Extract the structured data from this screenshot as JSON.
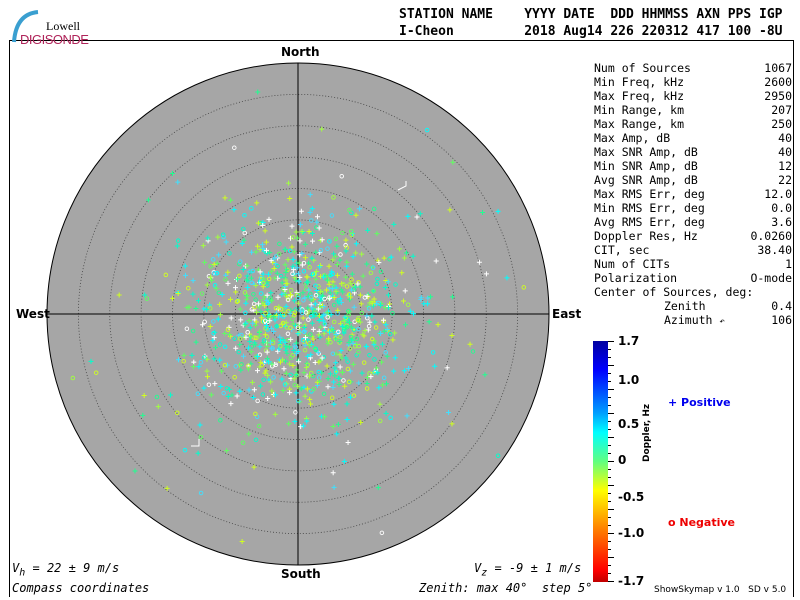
{
  "logo": {
    "line1": "Lowell",
    "line2": "DIGISONDE"
  },
  "header": {
    "labels": "STATION NAME    YYYY DATE  DDD HHMMSS AXN PPS IGP",
    "values": "I-Cheon         2018 Aug14 226 220312 417 100 -8U"
  },
  "directions": {
    "north": "North",
    "south": "South",
    "east": "East",
    "west": "West"
  },
  "stats": [
    {
      "label": "Num of Sources",
      "value": "1067"
    },
    {
      "label": "Min Freq, kHz",
      "value": "2600"
    },
    {
      "label": "Max Freq, kHz",
      "value": "2950"
    },
    {
      "label": "Min Range, km",
      "value": "207"
    },
    {
      "label": "Max Range, km",
      "value": "250"
    },
    {
      "label": "Max Amp, dB",
      "value": "40"
    },
    {
      "label": "Max SNR Amp, dB",
      "value": "40"
    },
    {
      "label": "Min SNR Amp, dB",
      "value": "12"
    },
    {
      "label": "Avg SNR Amp, dB",
      "value": "22"
    },
    {
      "label": "Max RMS Err, deg",
      "value": "12.0"
    },
    {
      "label": "Min RMS Err, deg",
      "value": "0.0"
    },
    {
      "label": "Avg RMS Err, deg",
      "value": "3.6"
    },
    {
      "label": "Doppler Res, Hz",
      "value": "0.0260"
    },
    {
      "label": "CIT, sec",
      "value": "38.40"
    },
    {
      "label": "Num of CITs",
      "value": "1"
    },
    {
      "label": "Polarization",
      "value": "O-mode"
    }
  ],
  "center": {
    "title": "Center of Sources, deg:",
    "zenith_label": "Zenith",
    "zenith": "0.4",
    "azimuth_label": "Azimuth",
    "azimuth": "106"
  },
  "colorbar": {
    "label": "Doppler, Hz",
    "ticks": [
      "1.7",
      "1.0",
      "0.5",
      "0",
      "-0.5",
      "-1.0",
      "-1.7"
    ],
    "range": [
      -1.7,
      1.7
    ]
  },
  "legend": {
    "positive": "Positive",
    "negative": "Negative",
    "positive_color": "#0000ee",
    "negative_color": "#ee0000"
  },
  "footer": {
    "vh": "V",
    "vh_sub": "h",
    "vh_text": " = 22 ± 9 m/s",
    "vz": "V",
    "vz_sub": "z",
    "vz_text": " = -9 ± 1 m/s",
    "coords": "Compass coordinates",
    "zenith": "Zenith: max 40°  step 5°",
    "version": "ShowSkymap v 1.0   SD v 5.0"
  },
  "chart_data": {
    "type": "scatter",
    "polar": true,
    "zenith_max_deg": 40,
    "zenith_step_deg": 5,
    "num_sources": 1067,
    "center_zenith_deg": 0.4,
    "center_azimuth_deg": 106,
    "plot_background": "#a6a6a6"
  }
}
